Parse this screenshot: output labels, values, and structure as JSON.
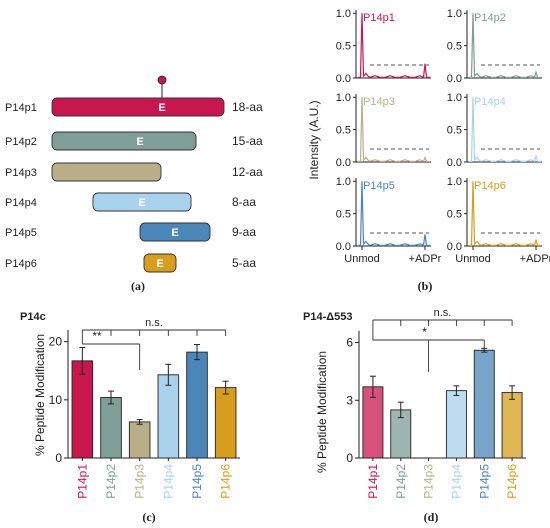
{
  "colors": {
    "P14p1": "#c8174f",
    "P14p2": "#7f9e96",
    "P14p3": "#b9b08a",
    "P14p4": "#a9d2ec",
    "P14p5": "#4b86b8",
    "P14p6": "#d79d1c",
    "axis": "#222222",
    "threshold": "#555555"
  },
  "panel_a": {
    "label": "(a)",
    "constructs": [
      {
        "name": "P14p1",
        "box_text": "E",
        "length": "18-aa",
        "color_key": "P14p1",
        "modified": true
      },
      {
        "name": "P14p2",
        "box_text": "E",
        "length": "15-aa",
        "color_key": "P14p2",
        "modified": false
      },
      {
        "name": "P14p3",
        "box_text": "",
        "length": "12-aa",
        "color_key": "P14p3",
        "modified": false
      },
      {
        "name": "P14p4",
        "box_text": "E",
        "length": "8-aa",
        "color_key": "P14p4",
        "modified": false
      },
      {
        "name": "P14p5",
        "box_text": "E",
        "length": "9-aa",
        "color_key": "P14p5",
        "modified": false
      },
      {
        "name": "P14p6",
        "box_text": "E",
        "length": "5-aa",
        "color_key": "P14p6",
        "modified": false
      }
    ]
  },
  "panel_b": {
    "label": "(b)",
    "ylabel": "Intensity (A.U.)",
    "y_ticks": [
      "0.0",
      "0.5",
      "1.0"
    ],
    "x_ticks": [
      "Unmod",
      "+ADPr"
    ],
    "threshold": 0.2
  },
  "panel_c": {
    "label": "(c)",
    "title": "P14c",
    "ylabel": "% Peptide Modification",
    "y_ticks": [
      "0",
      "10",
      "20"
    ],
    "significance": [
      {
        "text": "n.s.",
        "from": "P14p1",
        "to": "P14p6"
      },
      {
        "text": "**",
        "from": "P14p1",
        "to": "P14p3"
      }
    ]
  },
  "panel_d": {
    "label": "(d)",
    "title": "P14-Δ553",
    "ylabel": "% Peptide Modification",
    "y_ticks": [
      "0",
      "3",
      "6"
    ],
    "significance": [
      {
        "text": "n.s.",
        "from": "P14p1",
        "to": "P14p6"
      },
      {
        "text": "*",
        "from": "P14p1",
        "to": "P14p5"
      }
    ]
  },
  "chart_data": [
    {
      "type": "line",
      "panel": "b",
      "ylabel": "Intensity (A.U.)",
      "x_ticks": [
        "Unmod",
        "+ADPr"
      ],
      "ylim": [
        0,
        1.05
      ],
      "threshold": 0.2,
      "series": [
        {
          "name": "P14p1",
          "unmod_peak": 1.0,
          "adpr_peak": 0.22
        },
        {
          "name": "P14p2",
          "unmod_peak": 1.0,
          "adpr_peak": 0.09
        },
        {
          "name": "P14p3",
          "unmod_peak": 1.0,
          "adpr_peak": 0.07
        },
        {
          "name": "P14p4",
          "unmod_peak": 1.0,
          "adpr_peak": 0.09
        },
        {
          "name": "P14p5",
          "unmod_peak": 1.0,
          "adpr_peak": 0.18
        },
        {
          "name": "P14p6",
          "unmod_peak": 1.0,
          "adpr_peak": 0.1
        }
      ]
    },
    {
      "type": "bar",
      "panel": "c",
      "title": "P14c",
      "ylabel": "% Peptide Modification",
      "ylim": [
        0,
        22
      ],
      "categories": [
        "P14p1",
        "P14p2",
        "P14p3",
        "P14p4",
        "P14p5",
        "P14p6"
      ],
      "values": [
        16.7,
        10.4,
        6.2,
        14.3,
        18.2,
        12.1
      ],
      "errors": [
        2.3,
        1.1,
        0.4,
        1.8,
        1.3,
        1.1
      ]
    },
    {
      "type": "bar",
      "panel": "d",
      "title": "P14-Δ553",
      "ylabel": "% Peptide Modification",
      "ylim": [
        0,
        6.6
      ],
      "categories": [
        "P14p1",
        "P14p2",
        "P14p3",
        "P14p4",
        "P14p5",
        "P14p6"
      ],
      "values": [
        3.7,
        2.5,
        null,
        3.5,
        5.6,
        3.4
      ],
      "errors": [
        0.55,
        0.4,
        null,
        0.25,
        0.1,
        0.35
      ]
    }
  ]
}
